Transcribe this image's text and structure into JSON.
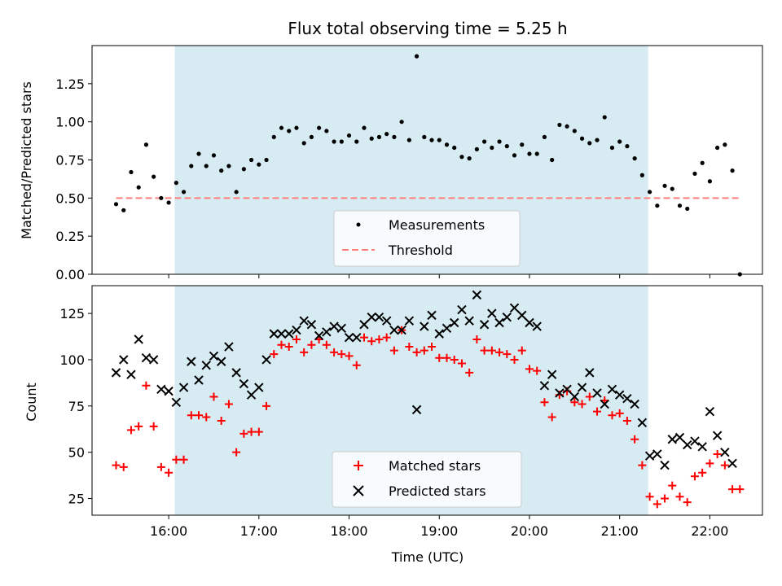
{
  "colors": {
    "shade": "#add8e6",
    "threshold": "#ff7f7f",
    "matched": "#ff0000",
    "predicted": "#000000",
    "measurements": "#000000"
  },
  "chart_data": [
    {
      "type": "scatter",
      "title": "Flux total observing time = 5.25 h",
      "xlabel": "",
      "ylabel": "Matched/Predicted stars",
      "ylim": [
        0,
        1.5
      ],
      "yticks": [
        "0.00",
        "0.25",
        "0.50",
        "0.75",
        "1.00",
        "1.25"
      ],
      "shaded_region": {
        "x_start": "16:04",
        "x_end": "21:19"
      },
      "threshold": 0.5,
      "legend": {
        "position": "bottom-center",
        "entries": [
          "Measurements",
          "Threshold"
        ]
      },
      "series": [
        {
          "name": "Measurements",
          "x": [
            "15:25",
            "15:30",
            "15:35",
            "15:40",
            "15:45",
            "15:50",
            "15:55",
            "16:00",
            "16:05",
            "16:10",
            "16:15",
            "16:20",
            "16:25",
            "16:30",
            "16:35",
            "16:40",
            "16:45",
            "16:50",
            "16:55",
            "17:00",
            "17:05",
            "17:10",
            "17:15",
            "17:20",
            "17:25",
            "17:30",
            "17:35",
            "17:40",
            "17:45",
            "17:50",
            "17:55",
            "18:00",
            "18:05",
            "18:10",
            "18:15",
            "18:20",
            "18:25",
            "18:30",
            "18:35",
            "18:40",
            "18:45",
            "18:50",
            "18:55",
            "19:00",
            "19:05",
            "19:10",
            "19:15",
            "19:20",
            "19:25",
            "19:30",
            "19:35",
            "19:40",
            "19:45",
            "19:50",
            "19:55",
            "20:00",
            "20:05",
            "20:10",
            "20:15",
            "20:20",
            "20:25",
            "20:30",
            "20:35",
            "20:40",
            "20:45",
            "20:50",
            "20:55",
            "21:00",
            "21:05",
            "21:10",
            "21:15",
            "21:20",
            "21:25",
            "21:30",
            "21:35",
            "21:40",
            "21:45",
            "21:50",
            "21:55",
            "22:00",
            "22:05",
            "22:10",
            "22:15",
            "22:20"
          ],
          "y": [
            0.46,
            0.42,
            0.67,
            0.57,
            0.85,
            0.64,
            0.5,
            0.47,
            0.6,
            0.54,
            0.71,
            0.79,
            0.71,
            0.78,
            0.68,
            0.71,
            0.54,
            0.69,
            0.75,
            0.72,
            0.75,
            0.9,
            0.96,
            0.94,
            0.96,
            0.86,
            0.9,
            0.96,
            0.94,
            0.87,
            0.87,
            0.91,
            0.87,
            0.96,
            0.89,
            0.9,
            0.92,
            0.9,
            1.0,
            0.88,
            1.43,
            0.9,
            0.88,
            0.88,
            0.85,
            0.83,
            0.77,
            0.76,
            0.82,
            0.87,
            0.83,
            0.87,
            0.84,
            0.78,
            0.85,
            0.79,
            0.79,
            0.9,
            0.75,
            0.98,
            0.97,
            0.94,
            0.89,
            0.86,
            0.88,
            1.03,
            0.83,
            0.87,
            0.84,
            0.76,
            0.65,
            0.54,
            0.45,
            0.58,
            0.56,
            0.45,
            0.43,
            0.66,
            0.73,
            0.61,
            0.83,
            0.85,
            0.68,
            0.0
          ]
        }
      ]
    },
    {
      "type": "scatter",
      "title": "",
      "xlabel": "Time (UTC)",
      "ylabel": "Count",
      "ylim": [
        16,
        140
      ],
      "yticks": [
        "25",
        "50",
        "75",
        "100",
        "125"
      ],
      "xticks": [
        "16:00",
        "17:00",
        "18:00",
        "19:00",
        "20:00",
        "21:00",
        "22:00"
      ],
      "shaded_region": {
        "x_start": "16:04",
        "x_end": "21:19"
      },
      "legend": {
        "position": "bottom-center",
        "entries": [
          "Matched stars",
          "Predicted stars"
        ]
      },
      "series": [
        {
          "name": "Matched stars",
          "x": [
            "15:25",
            "15:30",
            "15:35",
            "15:40",
            "15:45",
            "15:50",
            "15:55",
            "16:00",
            "16:05",
            "16:10",
            "16:15",
            "16:20",
            "16:25",
            "16:30",
            "16:35",
            "16:40",
            "16:45",
            "16:50",
            "16:55",
            "17:00",
            "17:05",
            "17:10",
            "17:15",
            "17:20",
            "17:25",
            "17:30",
            "17:35",
            "17:40",
            "17:45",
            "17:50",
            "17:55",
            "18:00",
            "18:05",
            "18:10",
            "18:15",
            "18:20",
            "18:25",
            "18:30",
            "18:35",
            "18:40",
            "18:45",
            "18:50",
            "18:55",
            "19:00",
            "19:05",
            "19:10",
            "19:15",
            "19:20",
            "19:25",
            "19:30",
            "19:35",
            "19:40",
            "19:45",
            "19:50",
            "19:55",
            "20:00",
            "20:05",
            "20:10",
            "20:15",
            "20:20",
            "20:25",
            "20:30",
            "20:35",
            "20:40",
            "20:45",
            "20:50",
            "20:55",
            "21:00",
            "21:05",
            "21:10",
            "21:15",
            "21:20",
            "21:25",
            "21:30",
            "21:35",
            "21:40",
            "21:45",
            "21:50",
            "21:55",
            "22:00",
            "22:05",
            "22:10",
            "22:15",
            "22:20"
          ],
          "y": [
            43,
            42,
            62,
            64,
            86,
            64,
            42,
            39,
            46,
            46,
            70,
            70,
            69,
            80,
            67,
            76,
            50,
            60,
            61,
            61,
            75,
            103,
            108,
            107,
            111,
            104,
            108,
            111,
            108,
            104,
            103,
            102,
            97,
            112,
            110,
            111,
            112,
            105,
            116,
            107,
            104,
            105,
            107,
            101,
            101,
            100,
            98,
            93,
            111,
            105,
            105,
            104,
            103,
            100,
            105,
            95,
            94,
            77,
            69,
            81,
            83,
            77,
            76,
            80,
            72,
            78,
            70,
            71,
            67,
            57,
            43,
            26,
            22,
            25,
            32,
            26,
            23,
            37,
            39,
            44,
            49,
            43,
            30,
            30
          ]
        },
        {
          "name": "Predicted stars",
          "x": [
            "15:25",
            "15:30",
            "15:35",
            "15:40",
            "15:45",
            "15:50",
            "15:55",
            "16:00",
            "16:05",
            "16:10",
            "16:15",
            "16:20",
            "16:25",
            "16:30",
            "16:35",
            "16:40",
            "16:45",
            "16:50",
            "16:55",
            "17:00",
            "17:05",
            "17:10",
            "17:15",
            "17:20",
            "17:25",
            "17:30",
            "17:35",
            "17:40",
            "17:45",
            "17:50",
            "17:55",
            "18:00",
            "18:05",
            "18:10",
            "18:15",
            "18:20",
            "18:25",
            "18:30",
            "18:35",
            "18:40",
            "18:45",
            "18:50",
            "18:55",
            "19:00",
            "19:05",
            "19:10",
            "19:15",
            "19:20",
            "19:25",
            "19:30",
            "19:35",
            "19:40",
            "19:45",
            "19:50",
            "19:55",
            "20:00",
            "20:05",
            "20:10",
            "20:15",
            "20:20",
            "20:25",
            "20:30",
            "20:35",
            "20:40",
            "20:45",
            "20:50",
            "20:55",
            "21:00",
            "21:05",
            "21:10",
            "21:15",
            "21:20",
            "21:25",
            "21:30",
            "21:35",
            "21:40",
            "21:45",
            "21:50",
            "21:55",
            "22:00",
            "22:05",
            "22:10",
            "22:15"
          ],
          "y": [
            93,
            100,
            92,
            111,
            101,
            100,
            84,
            83,
            77,
            85,
            99,
            89,
            97,
            102,
            99,
            107,
            93,
            87,
            81,
            85,
            100,
            114,
            114,
            114,
            116,
            121,
            119,
            113,
            115,
            118,
            117,
            112,
            112,
            119,
            123,
            123,
            121,
            116,
            116,
            121,
            73,
            118,
            124,
            114,
            117,
            120,
            127,
            121,
            135,
            119,
            125,
            120,
            123,
            128,
            124,
            120,
            118,
            86,
            92,
            82,
            84,
            80,
            85,
            93,
            82,
            76,
            84,
            81,
            79,
            76,
            66,
            48,
            49,
            43,
            57,
            58,
            54,
            56,
            53,
            72,
            59,
            50,
            44
          ]
        }
      ]
    }
  ]
}
